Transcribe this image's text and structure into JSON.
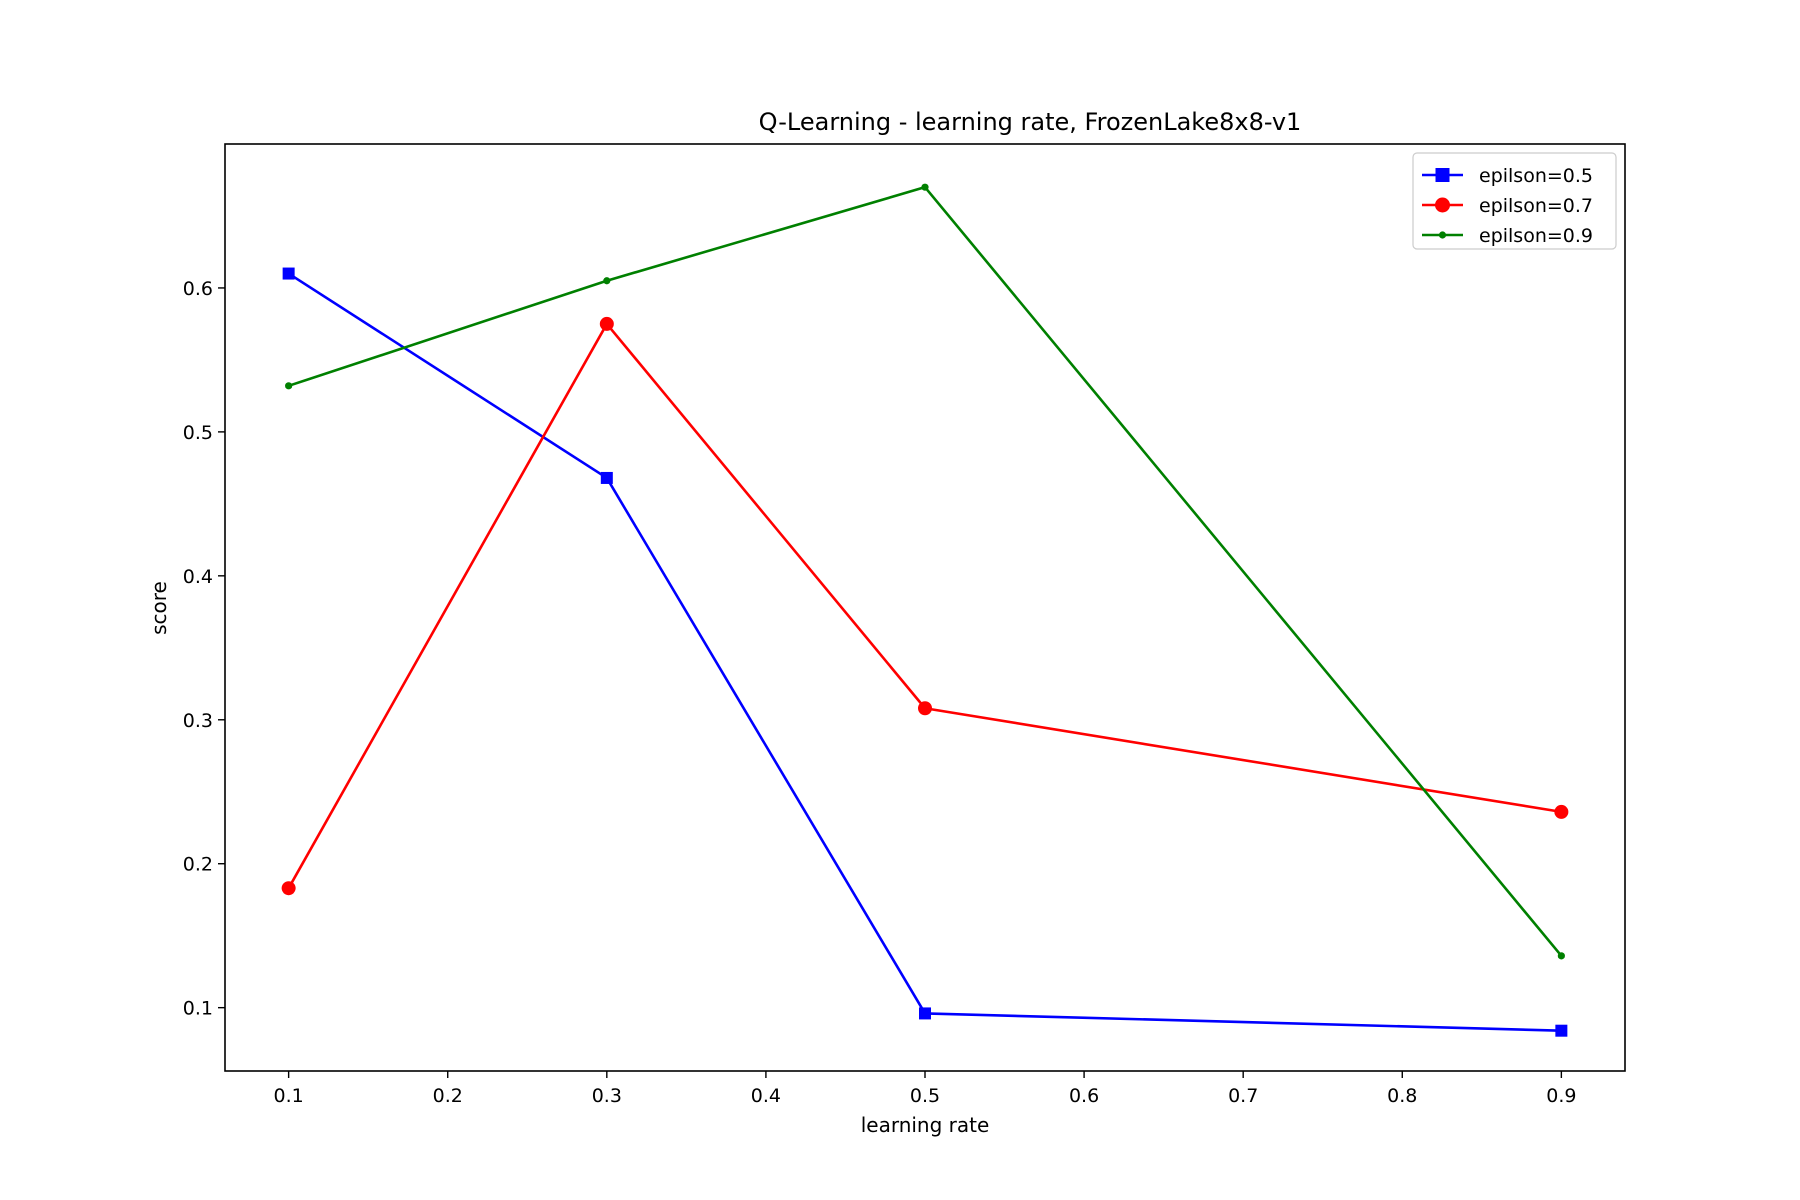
{
  "chart_data": {
    "type": "line",
    "title": "Q-Learning - learning rate, FrozenLake8x8-v1",
    "xlabel": "learning rate",
    "ylabel": "score",
    "x": [
      0.1,
      0.3,
      0.5,
      0.9
    ],
    "xlim": [
      0.06,
      0.94
    ],
    "ylim": [
      0.056,
      0.7
    ],
    "xticks": [
      "0.1",
      "0.2",
      "0.3",
      "0.4",
      "0.5",
      "0.6",
      "0.7",
      "0.8",
      "0.9"
    ],
    "yticks": [
      "0.1",
      "0.2",
      "0.3",
      "0.4",
      "0.5",
      "0.6"
    ],
    "grid": false,
    "legend_position": "top-right",
    "series": [
      {
        "name": "epilson=0.5",
        "color": "#0000ff",
        "marker": "square",
        "values": [
          0.61,
          0.468,
          0.096,
          0.084
        ]
      },
      {
        "name": "epilson=0.7",
        "color": "#ff0000",
        "marker": "circle",
        "values": [
          0.183,
          0.575,
          0.308,
          0.236
        ]
      },
      {
        "name": "epilson=0.9",
        "color": "#008000",
        "marker": "dot",
        "values": [
          0.532,
          0.605,
          0.67,
          0.136
        ]
      }
    ]
  }
}
